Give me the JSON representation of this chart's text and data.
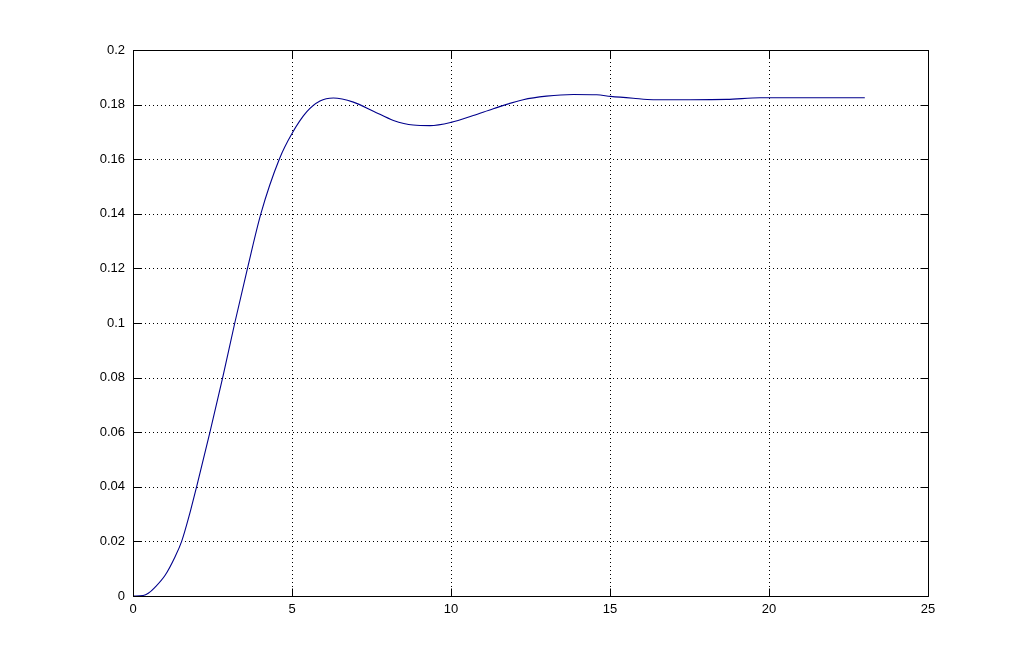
{
  "chart_data": {
    "type": "line",
    "x": [
      0,
      0.32,
      0.48,
      0.69,
      1.01,
      1.32,
      1.53,
      1.78,
      2.0,
      2.42,
      2.82,
      3.2,
      3.6,
      4.02,
      4.6,
      5.0,
      5.46,
      5.88,
      6.3,
      6.93,
      7.56,
      8.19,
      8.81,
      9.34,
      10.0,
      10.7,
      11.33,
      12.27,
      13.0,
      13.85,
      14.58,
      15.02,
      15.73,
      16.36,
      17.52,
      18.67,
      19.72,
      21.18,
      23.0
    ],
    "values": [
      0,
      0.0002,
      0.001,
      0.0032,
      0.0076,
      0.0143,
      0.02,
      0.03,
      0.04,
      0.06,
      0.08,
      0.1,
      0.12,
      0.14,
      0.16,
      0.1694,
      0.1773,
      0.1813,
      0.1824,
      0.1809,
      0.1776,
      0.1742,
      0.1725,
      0.1723,
      0.1735,
      0.176,
      0.1785,
      0.1818,
      0.1831,
      0.1837,
      0.1836,
      0.183,
      0.1823,
      0.1818,
      0.1818,
      0.1819,
      0.1825,
      0.1825,
      0.1825
    ],
    "color": "#00008c",
    "line_style": "solid",
    "xlim": [
      0,
      25
    ],
    "xticks": [
      0,
      5,
      10,
      15,
      20,
      25
    ],
    "ylim": [
      0,
      0.2
    ],
    "yticks": [
      0,
      0.02,
      0.04,
      0.06,
      0.08,
      0.1,
      0.12,
      0.14,
      0.16,
      0.18,
      0.2
    ],
    "grid": true
  }
}
